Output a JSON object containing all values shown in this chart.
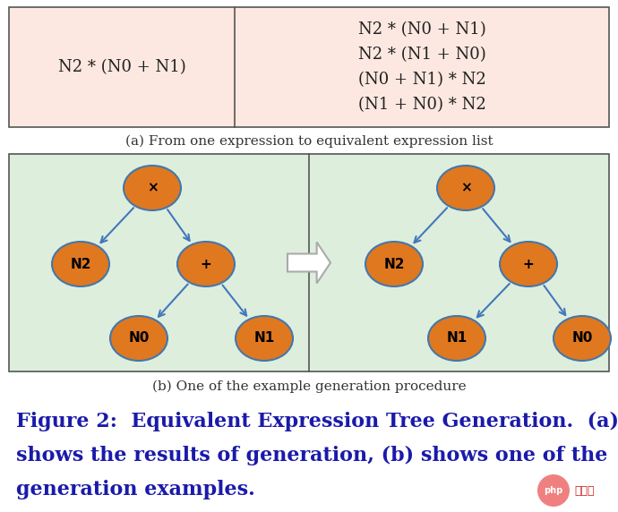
{
  "bg_color": "#ffffff",
  "table_bg": "#fce8e0",
  "table_border": "#555555",
  "tree_bg": "#ddeedd",
  "node_color": "#e07820",
  "node_edge": "#4477aa",
  "arrow_color": "#4477bb",
  "text_color": "#222222",
  "caption_color": "#333333",
  "figure_caption_color": "#1a1aaa",
  "left_expr": "N2 * (N0 + N1)",
  "right_exprs": [
    "N2 * (N0 + N1)",
    "N2 * (N1 + N0)",
    "(N0 + N1) * N2",
    "(N1 + N0) * N2"
  ],
  "caption_a": "(a) From one expression to equivalent expression list",
  "caption_b": "(b) One of the example generation procedure",
  "fig_caption_lines": [
    "Figure 2:  Equivalent Expression Tree Generation.  (a)",
    "shows the results of generation, (b) shows one of the",
    "generation examples."
  ],
  "fig_width": 6.9,
  "fig_height": 5.72
}
